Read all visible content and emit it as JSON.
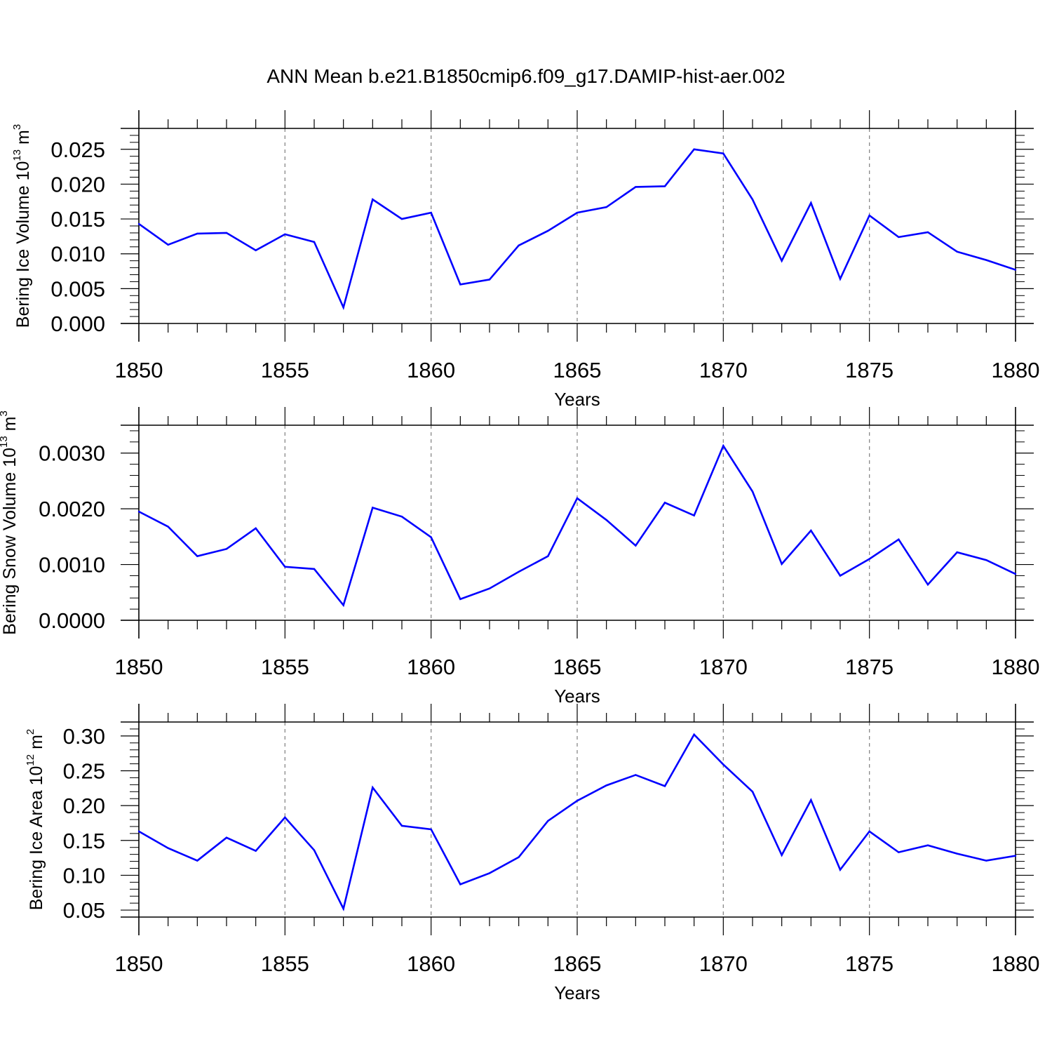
{
  "title": "ANN Mean b.e21.B1850cmip6.f09_g17.DAMIP-hist-aer.002",
  "colors": {
    "line": "#0000ff",
    "axis": "#000000",
    "grid": "#888888",
    "background": "#ffffff"
  },
  "chart_data": [
    {
      "type": "line",
      "title": "",
      "xlabel": "Years",
      "ylabel": {
        "pre": "Bering Ice Volume 10",
        "sup": "13",
        "post": " m",
        "sup2": "3"
      },
      "xlim": [
        1850,
        1880
      ],
      "xticks": [
        1850,
        1855,
        1860,
        1865,
        1870,
        1875,
        1880
      ],
      "xtick_labels": [
        "1850",
        "1855",
        "1860",
        "1865",
        "1870",
        "1875",
        "1880"
      ],
      "ylim": [
        0.0,
        0.028
      ],
      "yticks": [
        0.0,
        0.005,
        0.01,
        0.015,
        0.02,
        0.025
      ],
      "ytick_labels": [
        "0.000",
        "0.005",
        "0.010",
        "0.015",
        "0.020",
        "0.025"
      ],
      "yminor": [
        0.001,
        0.002,
        0.003,
        0.004,
        0.006,
        0.007,
        0.008,
        0.009,
        0.011,
        0.012,
        0.013,
        0.014,
        0.016,
        0.017,
        0.018,
        0.019,
        0.021,
        0.022,
        0.023,
        0.024,
        0.026,
        0.027
      ],
      "grid_x": true,
      "series": [
        {
          "name": "Bering Ice Volume",
          "x": [
            1850,
            1851,
            1852,
            1853,
            1854,
            1855,
            1856,
            1857,
            1858,
            1859,
            1860,
            1861,
            1862,
            1863,
            1864,
            1865,
            1866,
            1867,
            1868,
            1869,
            1870,
            1871,
            1872,
            1873,
            1874,
            1875,
            1876,
            1877,
            1878,
            1879,
            1880
          ],
          "values": [
            0.0143,
            0.0113,
            0.0129,
            0.013,
            0.0105,
            0.0128,
            0.0117,
            0.0023,
            0.0178,
            0.015,
            0.0159,
            0.0056,
            0.0063,
            0.0112,
            0.0133,
            0.0159,
            0.0167,
            0.0196,
            0.0197,
            0.025,
            0.0244,
            0.0178,
            0.009,
            0.0173,
            0.0064,
            0.0155,
            0.0124,
            0.0131,
            0.0103,
            0.0091,
            0.0077
          ]
        }
      ]
    },
    {
      "type": "line",
      "title": "",
      "xlabel": "Years",
      "ylabel": {
        "pre": "Bering Snow Volume 10",
        "sup": "13",
        "post": " m",
        "sup2": "3"
      },
      "xlim": [
        1850,
        1880
      ],
      "xticks": [
        1850,
        1855,
        1860,
        1865,
        1870,
        1875,
        1880
      ],
      "xtick_labels": [
        "1850",
        "1855",
        "1860",
        "1865",
        "1870",
        "1875",
        "1880"
      ],
      "ylim": [
        0.0,
        0.0035
      ],
      "yticks": [
        0.0,
        0.001,
        0.002,
        0.003
      ],
      "ytick_labels": [
        "0.0000",
        "0.0010",
        "0.0020",
        "0.0030"
      ],
      "yminor": [
        0.0002,
        0.0004,
        0.0006,
        0.0008,
        0.0012,
        0.0014,
        0.0016,
        0.0018,
        0.0022,
        0.0024,
        0.0026,
        0.0028,
        0.0032,
        0.0034
      ],
      "grid_x": true,
      "series": [
        {
          "name": "Bering Snow Volume",
          "x": [
            1850,
            1851,
            1852,
            1853,
            1854,
            1855,
            1856,
            1857,
            1858,
            1859,
            1860,
            1861,
            1862,
            1863,
            1864,
            1865,
            1866,
            1867,
            1868,
            1869,
            1870,
            1871,
            1872,
            1873,
            1874,
            1875,
            1876,
            1877,
            1878,
            1879,
            1880
          ],
          "values": [
            0.00195,
            0.00168,
            0.00115,
            0.00128,
            0.00165,
            0.00096,
            0.00092,
            0.00027,
            0.00202,
            0.00186,
            0.00149,
            0.00038,
            0.00057,
            0.00087,
            0.00115,
            0.00219,
            0.0018,
            0.00134,
            0.00211,
            0.00188,
            0.00313,
            0.00231,
            0.00101,
            0.00161,
            0.0008,
            0.0011,
            0.00145,
            0.00064,
            0.00122,
            0.00108,
            0.00083
          ]
        }
      ]
    },
    {
      "type": "line",
      "title": "",
      "xlabel": "Years",
      "ylabel": {
        "pre": "Bering Ice Area 10",
        "sup": "12",
        "post": " m",
        "sup2": "2"
      },
      "xlim": [
        1850,
        1880
      ],
      "xticks": [
        1850,
        1855,
        1860,
        1865,
        1870,
        1875,
        1880
      ],
      "xtick_labels": [
        "1850",
        "1855",
        "1860",
        "1865",
        "1870",
        "1875",
        "1880"
      ],
      "ylim": [
        0.04,
        0.32
      ],
      "yticks": [
        0.05,
        0.1,
        0.15,
        0.2,
        0.25,
        0.3
      ],
      "ytick_labels": [
        "0.05",
        "0.10",
        "0.15",
        "0.20",
        "0.25",
        "0.30"
      ],
      "yminor": [
        0.06,
        0.07,
        0.08,
        0.09,
        0.11,
        0.12,
        0.13,
        0.14,
        0.16,
        0.17,
        0.18,
        0.19,
        0.21,
        0.22,
        0.23,
        0.24,
        0.26,
        0.27,
        0.28,
        0.29,
        0.31
      ],
      "grid_x": true,
      "series": [
        {
          "name": "Bering Ice Area",
          "x": [
            1850,
            1851,
            1852,
            1853,
            1854,
            1855,
            1856,
            1857,
            1858,
            1859,
            1860,
            1861,
            1862,
            1863,
            1864,
            1865,
            1866,
            1867,
            1868,
            1869,
            1870,
            1871,
            1872,
            1873,
            1874,
            1875,
            1876,
            1877,
            1878,
            1879,
            1880
          ],
          "values": [
            0.163,
            0.139,
            0.121,
            0.154,
            0.135,
            0.183,
            0.136,
            0.052,
            0.226,
            0.171,
            0.166,
            0.087,
            0.103,
            0.126,
            0.178,
            0.207,
            0.229,
            0.244,
            0.228,
            0.302,
            0.259,
            0.22,
            0.129,
            0.208,
            0.108,
            0.163,
            0.133,
            0.143,
            0.131,
            0.121,
            0.128
          ]
        }
      ]
    }
  ]
}
